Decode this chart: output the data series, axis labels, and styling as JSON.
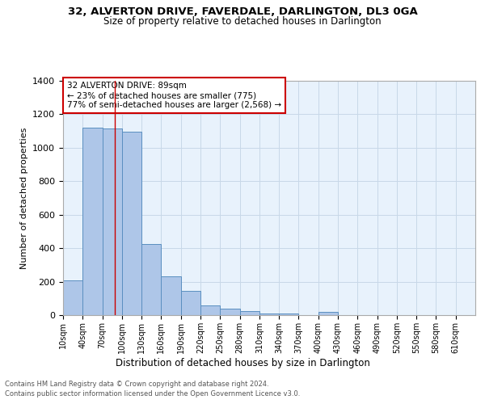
{
  "title1": "32, ALVERTON DRIVE, FAVERDALE, DARLINGTON, DL3 0GA",
  "title2": "Size of property relative to detached houses in Darlington",
  "xlabel": "Distribution of detached houses by size in Darlington",
  "ylabel": "Number of detached properties",
  "footnote1": "Contains HM Land Registry data © Crown copyright and database right 2024.",
  "footnote2": "Contains public sector information licensed under the Open Government Licence v3.0.",
  "annotation_line1": "32 ALVERTON DRIVE: 89sqm",
  "annotation_line2": "← 23% of detached houses are smaller (775)",
  "annotation_line3": "77% of semi-detached houses are larger (2,568) →",
  "bar_values": [
    210,
    1120,
    1115,
    1095,
    425,
    230,
    145,
    60,
    40,
    25,
    12,
    10,
    0,
    20,
    0,
    0,
    0,
    0,
    0
  ],
  "bin_labels": [
    "10sqm",
    "40sqm",
    "70sqm",
    "100sqm",
    "130sqm",
    "160sqm",
    "190sqm",
    "220sqm",
    "250sqm",
    "280sqm",
    "310sqm",
    "340sqm",
    "370sqm",
    "400sqm",
    "430sqm",
    "460sqm",
    "490sqm",
    "520sqm",
    "550sqm",
    "580sqm",
    "610sqm"
  ],
  "bar_color": "#aec6e8",
  "bar_edge_color": "#5a8fc0",
  "grid_color": "#c8d8e8",
  "bg_color": "#e8f2fc",
  "marker_color": "#cc0000",
  "ylim": [
    0,
    1400
  ],
  "yticks": [
    0,
    200,
    400,
    600,
    800,
    1000,
    1200,
    1400
  ]
}
